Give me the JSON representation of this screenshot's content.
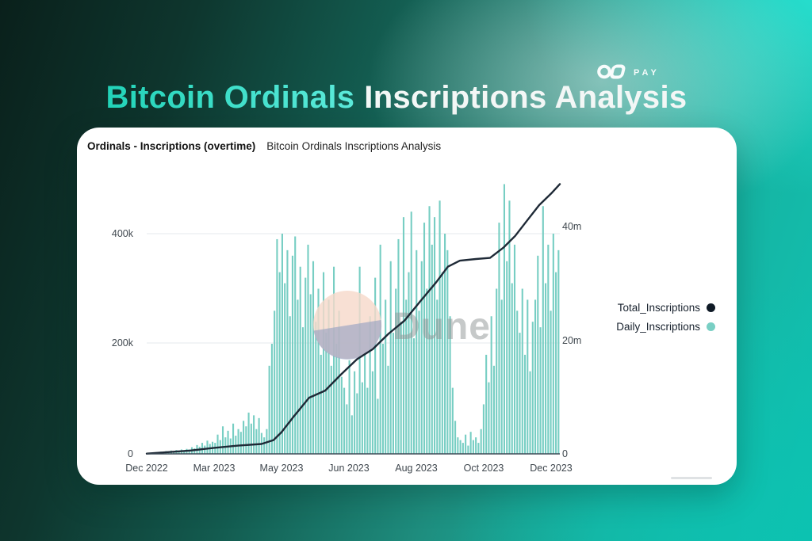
{
  "page": {
    "title_highlight": "Bitcoin Ordinals",
    "title_rest": "Inscriptions Analysis"
  },
  "logo": {
    "icon": "infinity-icon",
    "text": "PAY"
  },
  "watermark": {
    "text": "Dune"
  },
  "legend": [
    {
      "label": "Total_Inscriptions",
      "color": "#0f1a26"
    },
    {
      "label": "Daily_Inscriptions",
      "color": "#79cfc4"
    }
  ],
  "chart_data": {
    "type": "combo",
    "title": "Ordinals - Inscriptions (overtime)",
    "subtitle": "Bitcoin Ordinals Inscriptions Analysis",
    "x_labels": [
      "Dec 2022",
      "Mar 2023",
      "May 2023",
      "Jun 2023",
      "Aug 2023",
      "Oct 2023",
      "Dec 2023"
    ],
    "left_axis": {
      "ticks": [
        "400k",
        "200k",
        "0"
      ],
      "unit": "inscriptions per day",
      "ylim_k": [
        0,
        515
      ],
      "gridlines_k": [
        400,
        200
      ]
    },
    "right_axis": {
      "ticks": [
        "40m",
        "20m",
        "0"
      ],
      "unit": "total inscriptions",
      "ylim_m": [
        0,
        51.5
      ]
    },
    "legend_position": "right",
    "series": [
      {
        "name": "Daily_Inscriptions",
        "type": "bar",
        "axis": "left",
        "color": "#77cec3",
        "unit": "thousands",
        "values_k": [
          1,
          2,
          1,
          3,
          2,
          4,
          3,
          5,
          3,
          6,
          4,
          7,
          5,
          8,
          6,
          9,
          8,
          12,
          10,
          16,
          13,
          20,
          15,
          24,
          18,
          22,
          20,
          35,
          25,
          50,
          30,
          42,
          28,
          55,
          33,
          45,
          40,
          60,
          50,
          75,
          55,
          70,
          45,
          65,
          38,
          30,
          45,
          160,
          200,
          260,
          390,
          330,
          400,
          310,
          370,
          250,
          360,
          395,
          280,
          340,
          230,
          320,
          380,
          290,
          350,
          240,
          300,
          180,
          330,
          220,
          280,
          160,
          340,
          200,
          260,
          140,
          120,
          90,
          170,
          70,
          150,
          110,
          340,
          130,
          180,
          120,
          250,
          150,
          320,
          100,
          380,
          200,
          280,
          160,
          350,
          220,
          300,
          390,
          240,
          430,
          280,
          330,
          440,
          210,
          370,
          260,
          350,
          420,
          300,
          450,
          380,
          430,
          280,
          460,
          330,
          400,
          370,
          250,
          120,
          60,
          30,
          25,
          20,
          35,
          15,
          40,
          25,
          30,
          20,
          45,
          90,
          180,
          130,
          250,
          160,
          300,
          420,
          280,
          490,
          350,
          460,
          310,
          380,
          260,
          220,
          300,
          180,
          280,
          150,
          240,
          280,
          360,
          230,
          450,
          310,
          380,
          260,
          400,
          330,
          370
        ]
      },
      {
        "name": "Total_Inscriptions",
        "type": "line",
        "axis": "right",
        "color": "#1e2936",
        "unit": "millions",
        "x_frac": [
          0,
          0.106,
          0.163,
          0.221,
          0.278,
          0.307,
          0.326,
          0.355,
          0.393,
          0.432,
          0.47,
          0.509,
          0.547,
          0.585,
          0.624,
          0.662,
          0.701,
          0.729,
          0.758,
          0.797,
          0.831,
          0.864,
          0.892,
          0.921,
          0.95,
          0.979,
          1
        ],
        "values_m": [
          0.05,
          0.6,
          1.1,
          1.5,
          1.8,
          2.5,
          3.9,
          6.7,
          10.2,
          11.5,
          14.4,
          17.2,
          19,
          21.8,
          24.2,
          27.7,
          31.2,
          34,
          35.1,
          35.4,
          35.6,
          37.5,
          39.6,
          42.4,
          45.2,
          47.3,
          49
        ]
      }
    ]
  }
}
